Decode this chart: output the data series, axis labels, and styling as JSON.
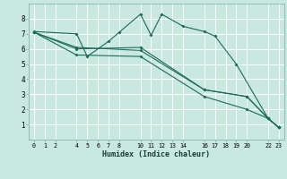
{
  "xlabel": "Humidex (Indice chaleur)",
  "background_color": "#c8e8e0",
  "grid_color": "#ffffff",
  "line_color": "#1a6b5a",
  "xlim": [
    -0.5,
    23.5
  ],
  "ylim": [
    0,
    9
  ],
  "xticks": [
    0,
    1,
    2,
    4,
    5,
    6,
    7,
    8,
    10,
    11,
    12,
    13,
    14,
    16,
    17,
    18,
    19,
    20,
    22,
    23
  ],
  "yticks": [
    1,
    2,
    3,
    4,
    5,
    6,
    7,
    8
  ],
  "series": [
    {
      "x": [
        0,
        4,
        5,
        7,
        8,
        10,
        11,
        12,
        14,
        16,
        17,
        19,
        22,
        23
      ],
      "y": [
        7.15,
        7.0,
        5.5,
        6.5,
        7.1,
        8.3,
        6.9,
        8.3,
        7.5,
        7.15,
        6.85,
        5.0,
        1.4,
        0.8
      ]
    },
    {
      "x": [
        0,
        4,
        10,
        16,
        20,
        22,
        23
      ],
      "y": [
        7.1,
        6.0,
        6.1,
        3.3,
        2.85,
        1.4,
        0.8
      ]
    },
    {
      "x": [
        0,
        4,
        10,
        16,
        20,
        22,
        23
      ],
      "y": [
        7.1,
        5.6,
        5.5,
        2.85,
        2.0,
        1.4,
        0.8
      ]
    },
    {
      "x": [
        0,
        4,
        10,
        16,
        20,
        22,
        23
      ],
      "y": [
        7.1,
        6.1,
        5.9,
        3.3,
        2.85,
        1.4,
        0.8
      ]
    }
  ]
}
